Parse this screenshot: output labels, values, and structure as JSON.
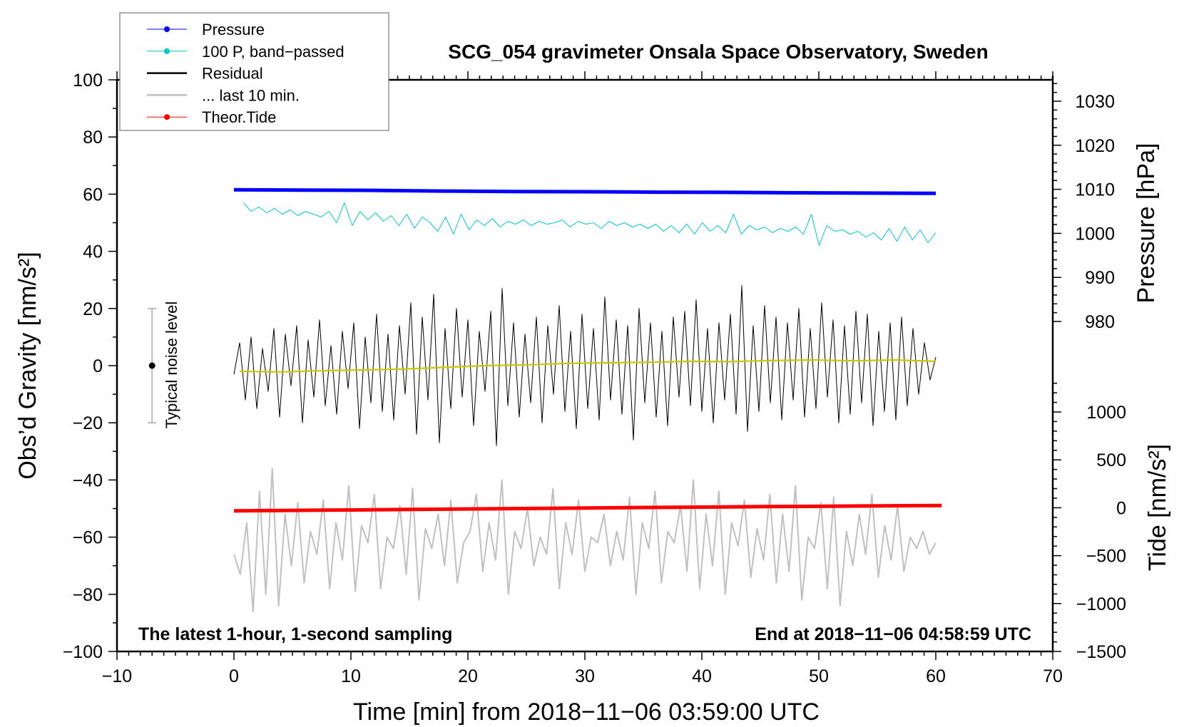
{
  "chart_data": {
    "type": "line",
    "title": "SCG_054 gravimeter Onsala Space Observatory, Sweden",
    "xlabel": "Time [min] from 2018−11−06 03:59:00 UTC",
    "ylabel": "Obs’d Gravity [nm/s²]",
    "ylabel_right_top": "Pressure [hPa]",
    "ylabel_right_bottom": "Tide [nm/s²]",
    "xlim": [
      -10,
      70
    ],
    "ylim": [
      -100,
      100
    ],
    "pressure_lim": [
      980,
      1034.9
    ],
    "tide_lim": [
      -1500,
      1000
    ],
    "x_ticks": [
      -10,
      0,
      10,
      20,
      30,
      40,
      50,
      60,
      70
    ],
    "y_ticks": [
      -100,
      -80,
      -60,
      -40,
      -20,
      0,
      20,
      40,
      60,
      80,
      100
    ],
    "pressure_ticks": [
      980,
      990,
      1000,
      1010,
      1020,
      1030
    ],
    "tide_ticks": [
      -1500,
      -1000,
      -500,
      0,
      500,
      1000
    ],
    "tick_labels_minus": "−",
    "notes": {
      "left": "The latest 1-hour, 1-second sampling",
      "right": "End at 2018−11−06 04:58:59 UTC",
      "noise": "Typical noise level"
    },
    "noise_level": {
      "x": -7,
      "low": -20,
      "high": 20,
      "center": 0
    },
    "legend": {
      "placement": "top-left",
      "entries": [
        {
          "label": "Pressure",
          "color": "#0000ff"
        },
        {
          "label": "100 P, band−passed",
          "color": "#00c8c8"
        },
        {
          "label": "Residual",
          "color": "#000000"
        },
        {
          "label": "... last 10 min.",
          "color": "#c0c0c0"
        },
        {
          "label": "Theor.Tide",
          "color": "#ff0000"
        }
      ]
    },
    "series": [
      {
        "name": "Pressure",
        "axis": "pressure",
        "color": "#0000ff",
        "t": [
          0,
          60
        ],
        "values": [
          1009.9,
          1009.8,
          1009.75,
          1009.6,
          1009.5,
          1009.45,
          1009.35,
          1009.3,
          1009.2,
          1009.15,
          1009.1
        ]
      },
      {
        "name": "100 P, band-passed",
        "axis": "left",
        "color": "#00c8c8",
        "t": [
          0.8,
          60
        ],
        "values": [
          57,
          54,
          55.5,
          53.5,
          55,
          53,
          54.5,
          52.5,
          54,
          53,
          52,
          54,
          50,
          57,
          49,
          54,
          51,
          53.5,
          50.5,
          52.5,
          49,
          53,
          48,
          52,
          50,
          47,
          52,
          46,
          53,
          47.5,
          51,
          49,
          51.5,
          48.5,
          50.5,
          49.5,
          51,
          49,
          50.5,
          49.5,
          50,
          51,
          48.5,
          50.5,
          49.5,
          50,
          48,
          50.5,
          49,
          50,
          48.5,
          49.5,
          48,
          49.5,
          47,
          49,
          46.5,
          49.5,
          46,
          50,
          47,
          49,
          46.5,
          53,
          46,
          49,
          47.5,
          48.5,
          46.5,
          48,
          47,
          48.5,
          46,
          53,
          42,
          49,
          47,
          47.5,
          46,
          47,
          45,
          46.5,
          44,
          48,
          43.5,
          48.5,
          44,
          47.5,
          43,
          46.5
        ]
      },
      {
        "name": "Residual",
        "axis": "left",
        "color": "#000000",
        "t": [
          0,
          60
        ],
        "values": [
          -3,
          8,
          -12,
          10,
          -15,
          6,
          -9,
          13,
          -18,
          11,
          -7,
          14,
          -20,
          9,
          -11,
          16,
          -14,
          7,
          -17,
          12,
          -8,
          15,
          -22,
          10,
          -13,
          18,
          -16,
          11,
          -19,
          14,
          -10,
          22,
          -24,
          17,
          -12,
          25,
          -27,
          13,
          -15,
          20,
          -11,
          16,
          -21,
          12,
          -9,
          19,
          -28,
          27,
          -14,
          15,
          -18,
          11,
          -13,
          17,
          -20,
          14,
          -10,
          21,
          -16,
          12,
          -22,
          18,
          -15,
          13,
          -19,
          24,
          -12,
          16,
          -17,
          14,
          -26,
          20,
          -13,
          15,
          -18,
          12,
          -21,
          17,
          -11,
          19,
          -14,
          23,
          -16,
          13,
          -20,
          15,
          -12,
          18,
          -17,
          28,
          -23,
          14,
          -16,
          21,
          -13,
          17,
          -19,
          15,
          -12,
          20,
          -18,
          13,
          -15,
          22,
          -11,
          16,
          -20,
          14,
          -17,
          19,
          -13,
          18,
          -21,
          12,
          -16,
          15,
          -19,
          17,
          -14,
          13,
          -10,
          8,
          -5,
          3
        ]
      },
      {
        "name": "Residual (smoothed)",
        "axis": "left",
        "color": "#c8c800",
        "t": [
          0.5,
          60
        ],
        "values": [
          -2,
          -2.2,
          -1.8,
          -1.5,
          -1.2,
          -0.6,
          0,
          0.3,
          0.8,
          1,
          1.2,
          1.5,
          1.4,
          1.8,
          2,
          1.7,
          2,
          1.5
        ]
      },
      {
        "name": "... last 10 min.",
        "axis": "left",
        "color": "#c0c0c0",
        "t": [
          0,
          60
        ],
        "values": [
          -66,
          -73,
          -55,
          -86,
          -44,
          -80,
          -36,
          -84,
          -52,
          -70,
          -48,
          -76,
          -58,
          -66,
          -47,
          -78,
          -55,
          -68,
          -42,
          -79,
          -56,
          -62,
          -45,
          -78,
          -60,
          -64,
          -49,
          -73,
          -43,
          -82,
          -57,
          -64,
          -52,
          -70,
          -47,
          -76,
          -62,
          -58,
          -45,
          -72,
          -55,
          -68,
          -40,
          -80,
          -58,
          -64,
          -50,
          -70,
          -60,
          -66,
          -43,
          -78,
          -55,
          -66,
          -47,
          -72,
          -60,
          -62,
          -52,
          -70,
          -58,
          -68,
          -46,
          -80,
          -55,
          -64,
          -44,
          -76,
          -58,
          -62,
          -49,
          -72,
          -40,
          -78,
          -52,
          -70,
          -44,
          -80,
          -55,
          -63,
          -47,
          -74,
          -57,
          -68,
          -45,
          -76,
          -52,
          -72,
          -42,
          -82,
          -60,
          -64,
          -48,
          -78,
          -46,
          -84,
          -58,
          -70,
          -52,
          -66,
          -45,
          -74,
          -56,
          -68,
          -49,
          -72,
          -60,
          -64,
          -58,
          -66,
          -62
        ]
      },
      {
        "name": "Theor.Tide",
        "axis": "tide",
        "color": "#ff0000",
        "t": [
          0,
          60.5
        ],
        "values": [
          -32,
          -25,
          -18,
          -10,
          -2,
          5,
          12,
          18,
          24
        ]
      }
    ]
  }
}
